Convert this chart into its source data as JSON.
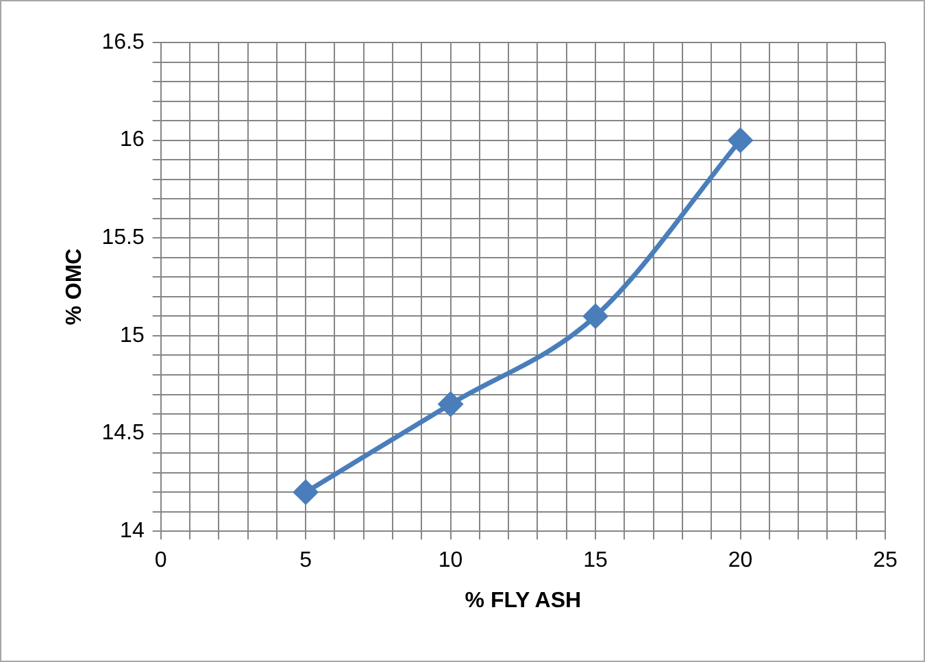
{
  "chart_data": {
    "type": "line",
    "xlabel": "% FLY ASH",
    "ylabel": "% OMC",
    "x": [
      5,
      10,
      15,
      20
    ],
    "series": [
      {
        "color": "#4a7ebb",
        "values": [
          14.2,
          14.65,
          15.1,
          16
        ]
      }
    ],
    "marker": "diamond",
    "line_style": "solid",
    "grid": true,
    "legend": false,
    "xlim": [
      0,
      25
    ],
    "xticks": [
      0,
      {
        "value": 1,
        "label": null
      },
      {
        "value": 2,
        "label": null
      },
      {
        "value": 3,
        "label": null
      },
      {
        "value": 4,
        "label": null
      },
      5,
      {
        "value": 6,
        "label": null
      },
      {
        "value": 7,
        "label": null
      },
      {
        "value": 8,
        "label": null
      },
      {
        "value": 9,
        "label": null
      },
      10,
      {
        "value": 11,
        "label": null
      },
      {
        "value": 12,
        "label": null
      },
      {
        "value": 13,
        "label": null
      },
      {
        "value": 14,
        "label": null
      },
      15,
      {
        "value": 16,
        "label": null
      },
      {
        "value": 17,
        "label": null
      },
      {
        "value": 18,
        "label": null
      },
      {
        "value": 19,
        "label": null
      },
      20,
      {
        "value": 21,
        "label": null
      },
      {
        "value": 22,
        "label": null
      },
      {
        "value": 23,
        "label": null
      },
      {
        "value": 24,
        "label": null
      },
      25
    ],
    "ylim": [
      14,
      16.5
    ],
    "yticks": [
      14,
      {
        "value": 14.1,
        "label": null
      },
      {
        "value": 14.2,
        "label": null
      },
      {
        "value": 14.3,
        "label": null
      },
      {
        "value": 14.4,
        "label": null
      },
      14.5,
      {
        "value": 14.6,
        "label": null
      },
      {
        "value": 14.7,
        "label": null
      },
      {
        "value": 14.8,
        "label": null
      },
      {
        "value": 14.9,
        "label": null
      },
      15,
      {
        "value": 15.1,
        "label": null
      },
      {
        "value": 15.2,
        "label": null
      },
      {
        "value": 15.3,
        "label": null
      },
      {
        "value": 15.4,
        "label": null
      },
      15.5,
      {
        "value": 15.6,
        "label": null
      },
      {
        "value": 15.7,
        "label": null
      },
      {
        "value": 15.8,
        "label": null
      },
      {
        "value": 15.9,
        "label": null
      },
      16,
      {
        "value": 16.1,
        "label": null
      },
      {
        "value": 16.2,
        "label": null
      },
      {
        "value": 16.3,
        "label": null
      },
      {
        "value": 16.4,
        "label": null
      },
      16.5
    ]
  }
}
